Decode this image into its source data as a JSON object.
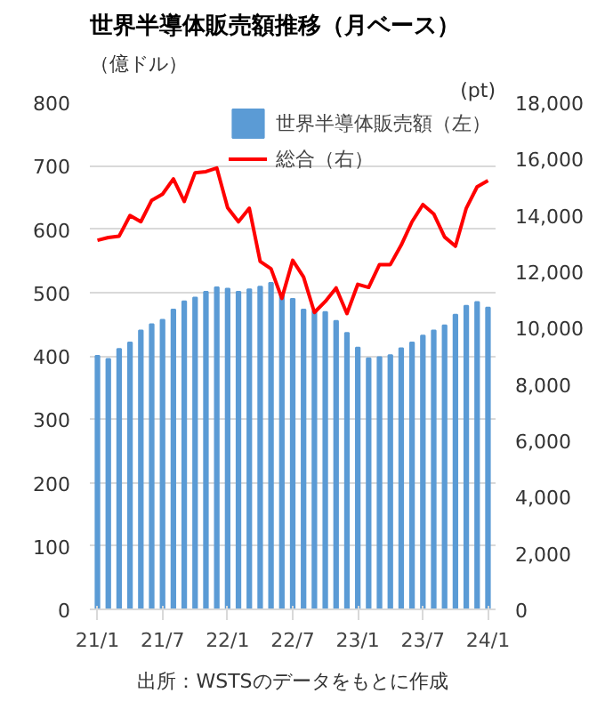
{
  "chart_data": {
    "type": "bar",
    "title": "世界半導体販売額推移（月ベース）",
    "ylabel": "（億ドル）",
    "y2label": "(pt)",
    "categories": [
      "21/1",
      null,
      null,
      null,
      null,
      null,
      "21/7",
      null,
      null,
      null,
      null,
      null,
      "22/1",
      null,
      null,
      null,
      null,
      null,
      "22/7",
      null,
      null,
      null,
      null,
      null,
      "23/1",
      null,
      null,
      null,
      null,
      null,
      "23/7",
      null,
      null,
      null,
      null,
      null,
      "24/1"
    ],
    "series": [
      {
        "name": "世界半導体販売額（左）",
        "type": "bar",
        "color": "#5b9bd5",
        "values": [
          400,
          395,
          411,
          421,
          440,
          450,
          457,
          473,
          486,
          492,
          501,
          508,
          506,
          501,
          505,
          509,
          515,
          499,
          490,
          473,
          471,
          469,
          455,
          436,
          413,
          396,
          398,
          401,
          412,
          421,
          432,
          440,
          448,
          465,
          479,
          485,
          476
        ]
      },
      {
        "name": "総合（右）",
        "type": "line",
        "axis": "y2",
        "color": "#ff0000",
        "values": [
          13100,
          13200,
          13250,
          13980,
          13760,
          14520,
          14740,
          15280,
          14480,
          15500,
          15540,
          15670,
          14260,
          13760,
          14240,
          12350,
          12090,
          11040,
          12390,
          11800,
          10540,
          10930,
          11410,
          10500,
          11540,
          11430,
          12240,
          12240,
          12930,
          13760,
          14370,
          14040,
          13220,
          12890,
          14240,
          15000,
          15220
        ]
      }
    ],
    "ylim": [
      0,
      800
    ],
    "yticks": [
      0,
      100,
      200,
      300,
      400,
      500,
      600,
      700,
      800
    ],
    "y2lim": [
      0,
      18000
    ],
    "y2ticks": [
      {
        "value": 0,
        "label": "0"
      },
      {
        "value": 2000,
        "label": "2,000"
      },
      {
        "value": 4000,
        "label": "4,000"
      },
      {
        "value": 6000,
        "label": "6,000"
      },
      {
        "value": 8000,
        "label": "8,000"
      },
      {
        "value": 10000,
        "label": "10,000"
      },
      {
        "value": 12000,
        "label": "12,000"
      },
      {
        "value": 14000,
        "label": "14,000"
      },
      {
        "value": 16000,
        "label": "16,000"
      },
      {
        "value": 18000,
        "label": "18,000"
      }
    ],
    "grid": "y",
    "legend": "top",
    "line_style": "solid",
    "marker": "none",
    "annotations": [
      "出所：WSTSのデータをもとに作成"
    ]
  }
}
